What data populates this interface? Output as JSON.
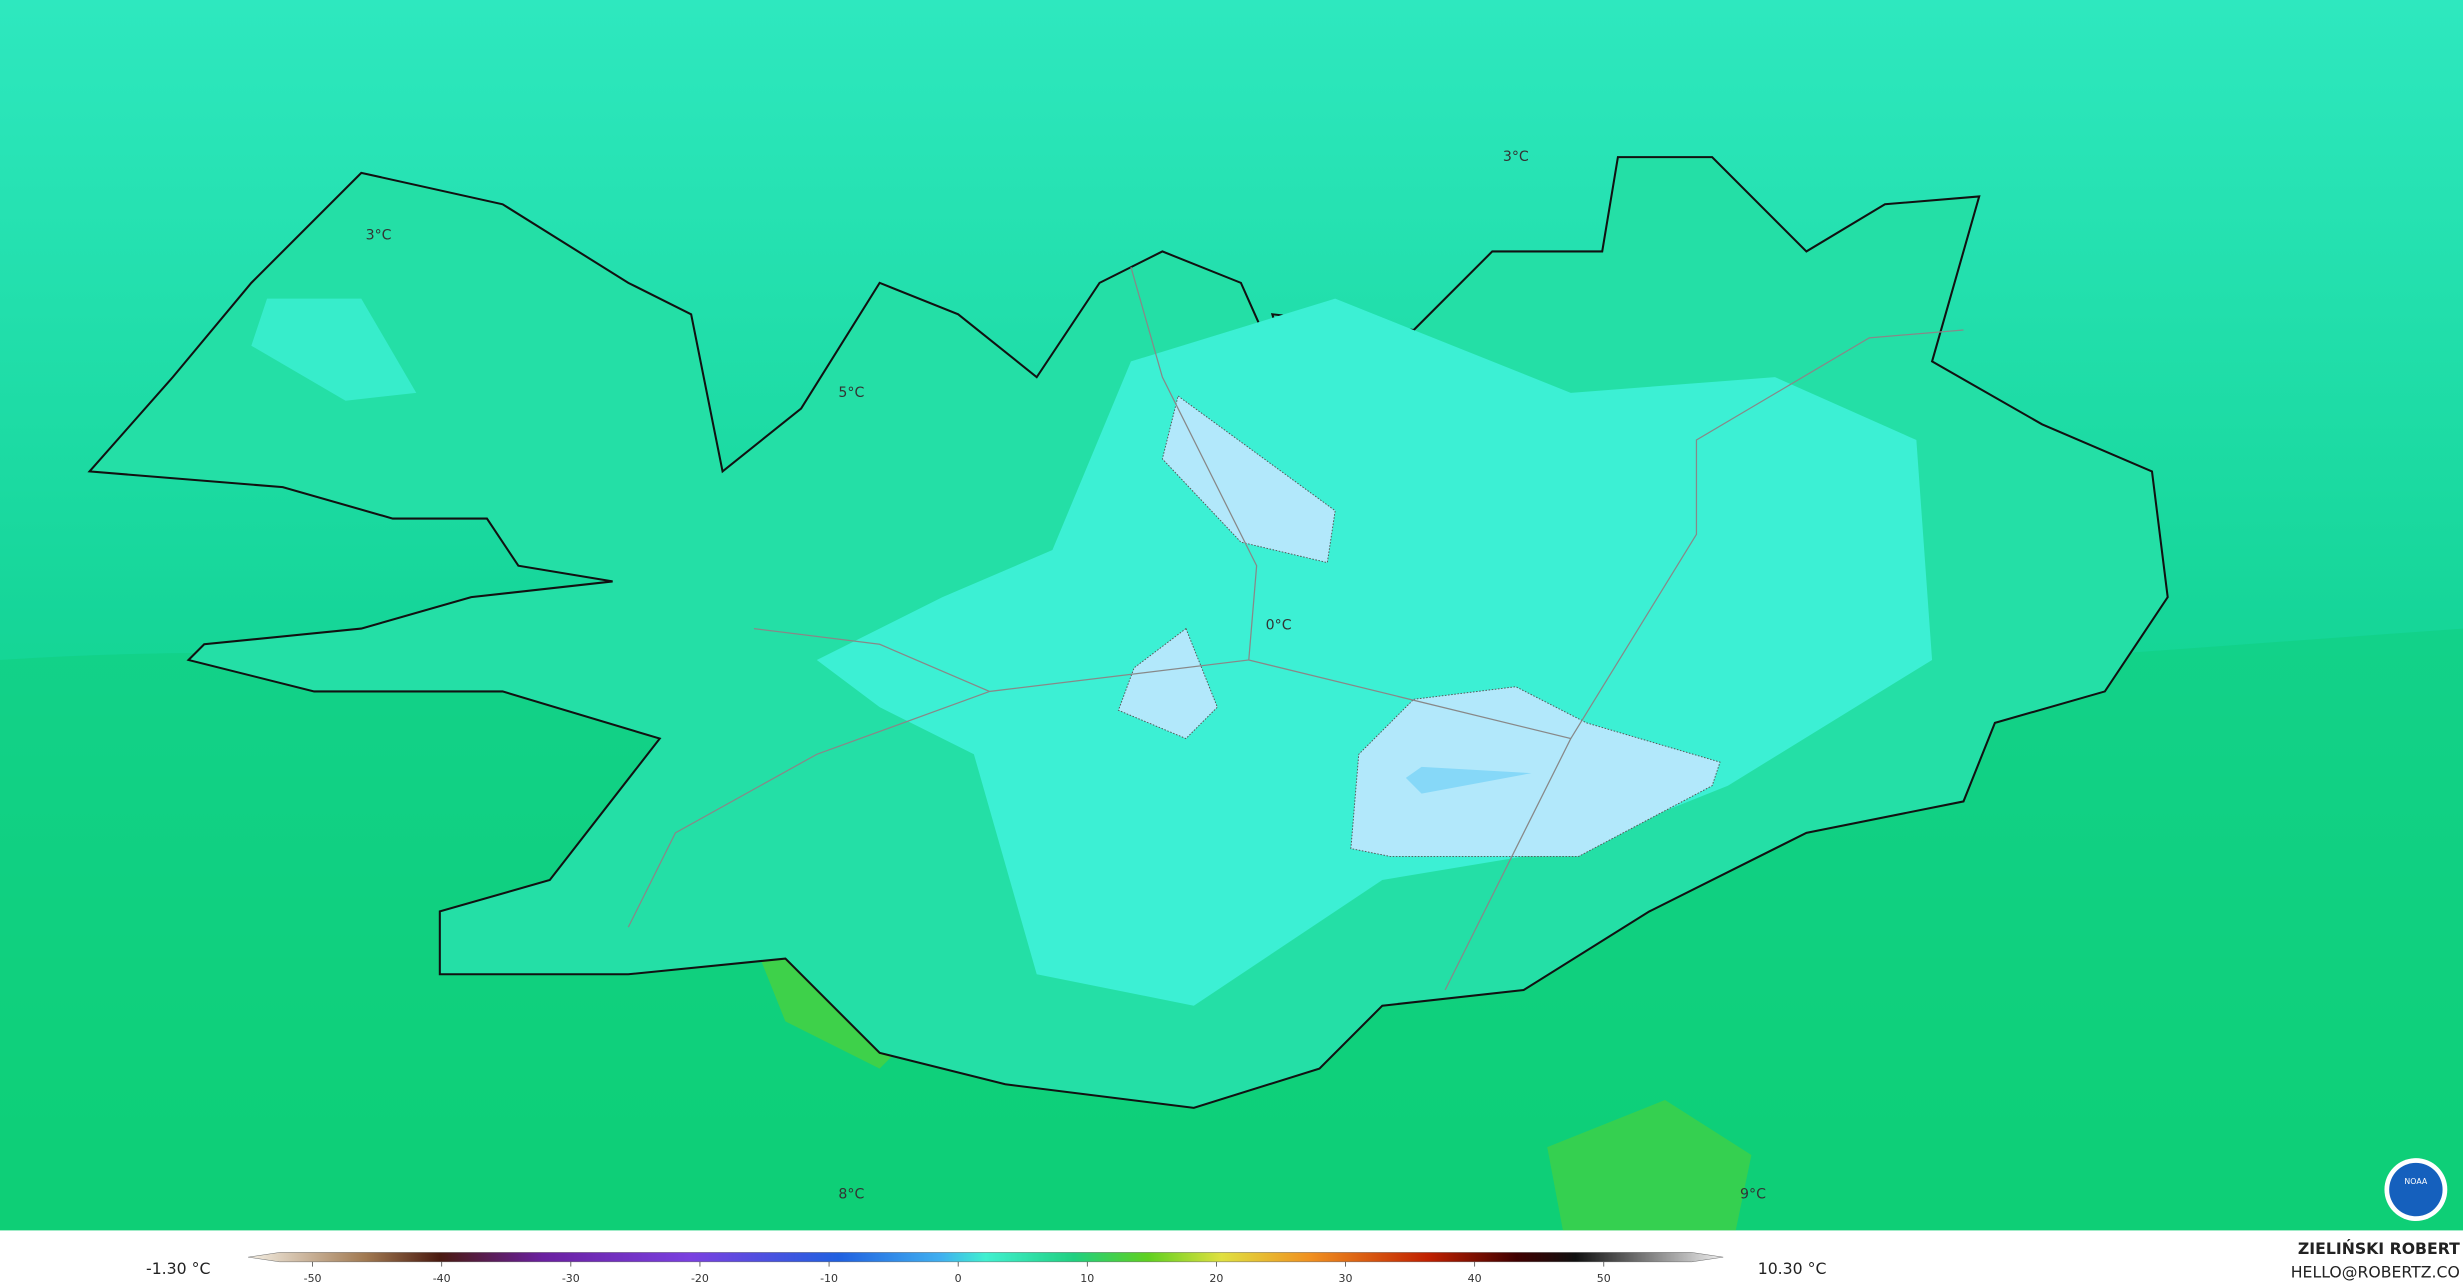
{
  "map": {
    "contour_labels": [
      "3°C",
      "3°C",
      "5°C",
      "0°C",
      "8°C",
      "9°C"
    ],
    "logo": "NOAA"
  },
  "colorbar": {
    "min_label": "-1.30 °C",
    "max_label": "10.30 °C",
    "ticks": [
      -50,
      -40,
      -30,
      -20,
      -10,
      0,
      10,
      20,
      30,
      40,
      50
    ]
  },
  "footer": {
    "author": "ZIELIŃSKI ROBERT",
    "email": "HELLO@ROBERTZ.CO"
  }
}
